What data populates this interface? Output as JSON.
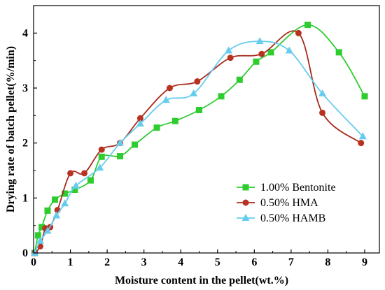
{
  "chart_data": {
    "type": "scatter",
    "xlabel": "Moisture content in the pellet(wt.%)",
    "ylabel": "Drying rate of batch pellet(%/min)",
    "xlim": [
      0,
      9.4
    ],
    "ylim": [
      0,
      4.5
    ],
    "xticks": [
      "0",
      "1",
      "2",
      "3",
      "4",
      "5",
      "6",
      "7",
      "8",
      "9"
    ],
    "yticks": [
      "0",
      "1",
      "2",
      "3",
      "4"
    ],
    "legend_position": "lower-right",
    "series": [
      {
        "name": "1.00% Bentonite",
        "marker": "square",
        "color": "#2ecc2e",
        "x": [
          0.03,
          0.12,
          0.22,
          0.38,
          0.58,
          0.85,
          1.12,
          1.55,
          1.85,
          2.35,
          2.75,
          3.35,
          3.85,
          4.5,
          5.1,
          5.6,
          6.05,
          6.45,
          7.45,
          8.3,
          9.0
        ],
        "y": [
          0.0,
          0.32,
          0.47,
          0.77,
          0.97,
          1.08,
          1.15,
          1.32,
          1.75,
          1.76,
          1.97,
          2.28,
          2.4,
          2.6,
          2.85,
          3.15,
          3.48,
          3.65,
          4.15,
          3.65,
          2.85
        ]
      },
      {
        "name": "0.50% HMA",
        "marker": "circle",
        "color": "#b83222",
        "x": [
          0.03,
          0.18,
          0.32,
          0.45,
          0.65,
          1.0,
          1.38,
          1.85,
          2.35,
          2.9,
          3.7,
          4.45,
          5.35,
          6.2,
          7.2,
          7.85,
          8.9
        ],
        "y": [
          0.0,
          0.12,
          0.45,
          0.47,
          0.78,
          1.45,
          1.45,
          1.88,
          2.0,
          2.45,
          3.0,
          3.12,
          3.55,
          3.62,
          4.0,
          2.55,
          2.0
        ]
      },
      {
        "name": "0.50% HAMB",
        "marker": "triangle",
        "color": "#66ccee",
        "x": [
          0.03,
          0.18,
          0.38,
          0.62,
          0.85,
          1.15,
          1.8,
          2.35,
          2.9,
          3.6,
          4.35,
          5.3,
          6.15,
          6.95,
          7.85,
          8.95
        ],
        "y": [
          0.0,
          0.22,
          0.4,
          0.68,
          0.9,
          1.22,
          1.55,
          2.0,
          2.35,
          2.78,
          2.9,
          3.68,
          3.85,
          3.68,
          2.9,
          2.12
        ]
      }
    ]
  }
}
